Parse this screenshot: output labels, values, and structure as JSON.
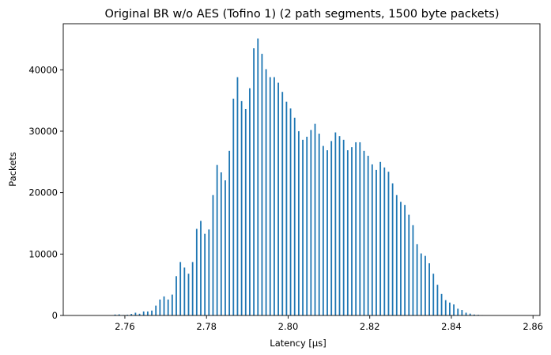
{
  "chart_data": {
    "type": "bar",
    "title": "Original BR w/o AES (Tofino 1) (2 path segments, 1500 byte packets)",
    "xlabel": "Latency [μs]",
    "ylabel": "Packets",
    "xlim": [
      2.7449,
      2.8617
    ],
    "ylim": [
      0,
      47500
    ],
    "xticks": [
      2.76,
      2.78,
      2.8,
      2.82,
      2.84,
      2.86
    ],
    "xtick_labels": [
      "2.76",
      "2.78",
      "2.80",
      "2.82",
      "2.84",
      "2.86"
    ],
    "yticks": [
      0,
      10000,
      20000,
      30000,
      40000
    ],
    "ytick_labels": [
      "0",
      "10000",
      "20000",
      "30000",
      "40000"
    ],
    "bar_width": 0.00035,
    "grid": false,
    "color": "#1f77b4",
    "x": [
      2.7576,
      2.7586,
      2.7596,
      2.7606,
      2.7616,
      2.7626,
      2.7636,
      2.7646,
      2.7656,
      2.7666,
      2.7676,
      2.7686,
      2.7696,
      2.7706,
      2.7716,
      2.7726,
      2.7736,
      2.7746,
      2.7756,
      2.7766,
      2.7776,
      2.7786,
      2.7796,
      2.7806,
      2.7816,
      2.7826,
      2.7836,
      2.7846,
      2.7856,
      2.7866,
      2.7876,
      2.7886,
      2.7896,
      2.7906,
      2.7916,
      2.7926,
      2.7936,
      2.7946,
      2.7956,
      2.7966,
      2.7976,
      2.7986,
      2.7996,
      2.8006,
      2.8016,
      2.8026,
      2.8036,
      2.8046,
      2.8056,
      2.8066,
      2.8076,
      2.8086,
      2.8096,
      2.8106,
      2.8116,
      2.8126,
      2.8136,
      2.8146,
      2.8156,
      2.8166,
      2.8176,
      2.8186,
      2.8196,
      2.8206,
      2.8216,
      2.8226,
      2.8236,
      2.8246,
      2.8256,
      2.8266,
      2.8276,
      2.8286,
      2.8296,
      2.8306,
      2.8316,
      2.8326,
      2.8336,
      2.8346,
      2.8356,
      2.8366,
      2.8376,
      2.8386,
      2.8396,
      2.8406,
      2.8416,
      2.8426,
      2.8436,
      2.8446,
      2.8456,
      2.8466,
      2.8476
    ],
    "values": [
      150,
      180,
      80,
      120,
      250,
      450,
      280,
      650,
      650,
      800,
      1600,
      2600,
      3100,
      2600,
      3400,
      6400,
      8700,
      7800,
      6800,
      8700,
      14100,
      15400,
      13300,
      14000,
      19600,
      24500,
      23300,
      22000,
      26800,
      35300,
      38800,
      34900,
      33600,
      37000,
      43500,
      45100,
      42600,
      40100,
      38800,
      38800,
      37900,
      36400,
      34800,
      33700,
      32200,
      30000,
      28600,
      29100,
      30200,
      31200,
      29600,
      27600,
      26900,
      28400,
      29800,
      29200,
      28600,
      26900,
      27400,
      28200,
      28200,
      26800,
      26000,
      24600,
      23700,
      25000,
      24100,
      23400,
      21500,
      19600,
      18500,
      18000,
      16400,
      14700,
      11600,
      10100,
      9700,
      8500,
      6800,
      5000,
      3500,
      2500,
      2100,
      1800,
      1100,
      900,
      450,
      300,
      150,
      100,
      50
    ]
  }
}
